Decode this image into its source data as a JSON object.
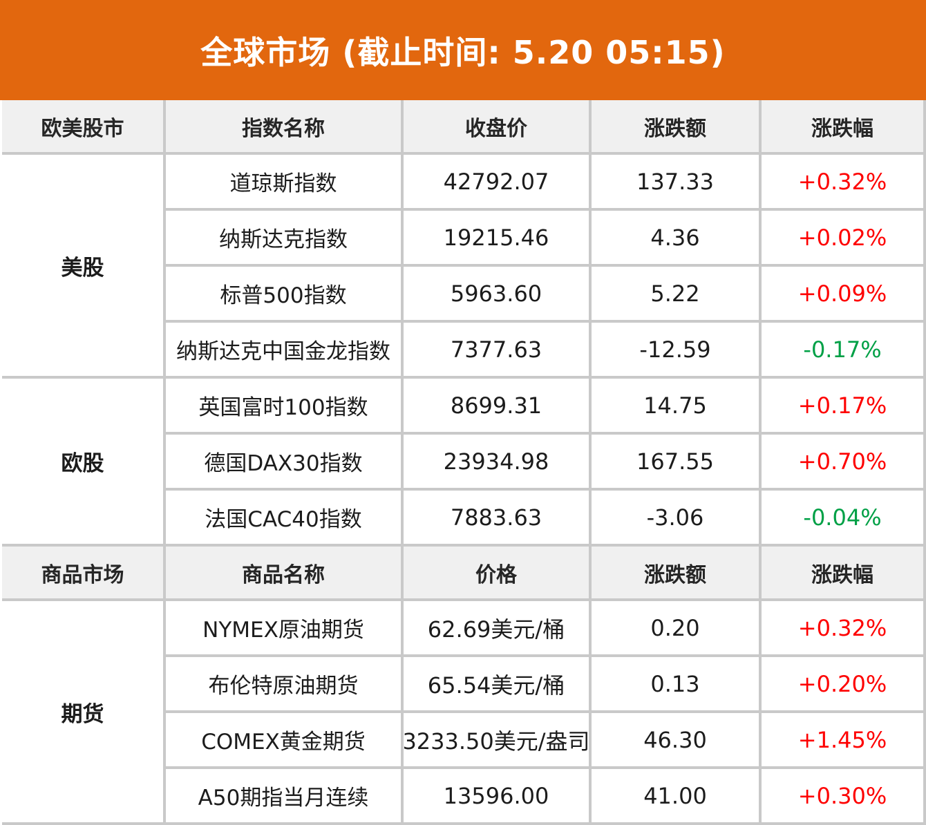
{
  "title": "全球市场 (截止时间: 5.20 05:15)",
  "colors": {
    "banner_bg": "#e2670e",
    "banner_text": "#ffffff",
    "header_bg": "#f0f0f0",
    "grid_line": "#c9c9c9",
    "up": "#fe0000",
    "down": "#00a046",
    "text": "#1c1c1c"
  },
  "sections": [
    {
      "header": {
        "group": "欧美股市",
        "name": "指数名称",
        "price": "收盘价",
        "change": "涨跌额",
        "pct": "涨跌幅"
      },
      "groups": [
        {
          "label": "美股",
          "rows": [
            {
              "name": "道琼斯指数",
              "price": "42792.07",
              "change": "137.33",
              "pct": "+0.32%",
              "dir": "up"
            },
            {
              "name": "纳斯达克指数",
              "price": "19215.46",
              "change": "4.36",
              "pct": "+0.02%",
              "dir": "up"
            },
            {
              "name": "标普500指数",
              "price": "5963.60",
              "change": "5.22",
              "pct": "+0.09%",
              "dir": "up"
            },
            {
              "name": "纳斯达克中国金龙指数",
              "price": "7377.63",
              "change": "-12.59",
              "pct": "-0.17%",
              "dir": "down"
            }
          ]
        },
        {
          "label": "欧股",
          "rows": [
            {
              "name": "英国富时100指数",
              "price": "8699.31",
              "change": "14.75",
              "pct": "+0.17%",
              "dir": "up"
            },
            {
              "name": "德国DAX30指数",
              "price": "23934.98",
              "change": "167.55",
              "pct": "+0.70%",
              "dir": "up"
            },
            {
              "name": "法国CAC40指数",
              "price": "7883.63",
              "change": "-3.06",
              "pct": "-0.04%",
              "dir": "down"
            }
          ]
        }
      ]
    },
    {
      "header": {
        "group": "商品市场",
        "name": "商品名称",
        "price": "价格",
        "change": "涨跌额",
        "pct": "涨跌幅"
      },
      "groups": [
        {
          "label": "期货",
          "rows": [
            {
              "name": "NYMEX原油期货",
              "price": "62.69美元/桶",
              "change": "0.20",
              "pct": "+0.32%",
              "dir": "up"
            },
            {
              "name": "布伦特原油期货",
              "price": "65.54美元/桶",
              "change": "0.13",
              "pct": "+0.20%",
              "dir": "up"
            },
            {
              "name": "COMEX黄金期货",
              "price": "3233.50美元/盎司",
              "change": "46.30",
              "pct": "+1.45%",
              "dir": "up"
            },
            {
              "name": "A50期指当月连续",
              "price": "13596.00",
              "change": "41.00",
              "pct": "+0.30%",
              "dir": "up"
            }
          ]
        }
      ]
    }
  ],
  "chart_data": {
    "type": "table",
    "title": "全球市场 (截止时间: 5.20 05:15)",
    "tables": [
      {
        "columns": [
          "欧美股市",
          "指数名称",
          "收盘价",
          "涨跌额",
          "涨跌幅"
        ],
        "rows": [
          [
            "美股",
            "道琼斯指数",
            42792.07,
            137.33,
            "+0.32%"
          ],
          [
            "美股",
            "纳斯达克指数",
            19215.46,
            4.36,
            "+0.02%"
          ],
          [
            "美股",
            "标普500指数",
            5963.6,
            5.22,
            "+0.09%"
          ],
          [
            "美股",
            "纳斯达克中国金龙指数",
            7377.63,
            -12.59,
            "-0.17%"
          ],
          [
            "欧股",
            "英国富时100指数",
            8699.31,
            14.75,
            "+0.17%"
          ],
          [
            "欧股",
            "德国DAX30指数",
            23934.98,
            167.55,
            "+0.70%"
          ],
          [
            "欧股",
            "法国CAC40指数",
            7883.63,
            -3.06,
            "-0.04%"
          ]
        ]
      },
      {
        "columns": [
          "商品市场",
          "商品名称",
          "价格",
          "涨跌额",
          "涨跌幅"
        ],
        "rows": [
          [
            "期货",
            "NYMEX原油期货",
            "62.69美元/桶",
            0.2,
            "+0.32%"
          ],
          [
            "期货",
            "布伦特原油期货",
            "65.54美元/桶",
            0.13,
            "+0.20%"
          ],
          [
            "期货",
            "COMEX黄金期货",
            "3233.50美元/盎司",
            46.3,
            "+1.45%"
          ],
          [
            "期货",
            "A50期指当月连续",
            13596.0,
            41.0,
            "+0.30%"
          ]
        ]
      }
    ],
    "layout": {
      "up_color_means": "rise (red, CN convention)",
      "down_color_means": "fall (green, CN convention)"
    }
  }
}
